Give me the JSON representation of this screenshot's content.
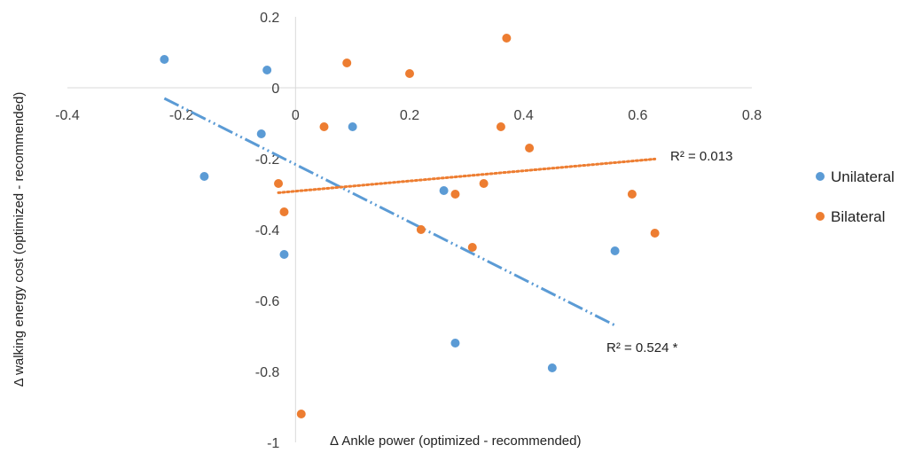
{
  "chart_data": {
    "type": "scatter",
    "xlabel": "Δ Ankle power (optimized - recommended)",
    "ylabel": "Δ walking energy cost (optimized - recommended)",
    "xlim": [
      -0.4,
      0.8
    ],
    "ylim": [
      -1,
      0.2
    ],
    "xticks": [
      "-0.4",
      "-0.2",
      "0",
      "0.2",
      "0.4",
      "0.6",
      "0.8"
    ],
    "yticks": [
      "0.2",
      "0",
      "-0.2",
      "-0.4",
      "-0.6",
      "-0.8",
      "-1"
    ],
    "legend_position": "right",
    "series": [
      {
        "name": "Unilateral",
        "color": "#5B9BD5",
        "points": [
          [
            -0.23,
            0.08
          ],
          [
            -0.05,
            0.05
          ],
          [
            -0.06,
            -0.13
          ],
          [
            -0.16,
            -0.25
          ],
          [
            0.1,
            -0.11
          ],
          [
            0.26,
            -0.29
          ],
          [
            -0.02,
            -0.47
          ],
          [
            0.56,
            -0.46
          ],
          [
            0.28,
            -0.72
          ],
          [
            0.45,
            -0.79
          ]
        ],
        "trendline": {
          "style": "dash-dot-dot",
          "x_range": [
            -0.23,
            0.56
          ],
          "y_range": [
            -0.03,
            -0.67
          ],
          "label": "R² = 0.524 *"
        }
      },
      {
        "name": "Bilateral",
        "color": "#ED7D31",
        "points": [
          [
            0.09,
            0.07
          ],
          [
            0.2,
            0.04
          ],
          [
            0.37,
            0.14
          ],
          [
            0.05,
            -0.11
          ],
          [
            0.36,
            -0.11
          ],
          [
            0.41,
            -0.17
          ],
          [
            -0.03,
            -0.27
          ],
          [
            -0.02,
            -0.35
          ],
          [
            0.28,
            -0.3
          ],
          [
            0.33,
            -0.27
          ],
          [
            0.59,
            -0.3
          ],
          [
            0.22,
            -0.4
          ],
          [
            0.31,
            -0.45
          ],
          [
            0.63,
            -0.41
          ],
          [
            0.01,
            -0.92
          ]
        ],
        "trendline": {
          "style": "dotted",
          "x_range": [
            -0.03,
            0.63
          ],
          "y_range": [
            -0.296,
            -0.201
          ],
          "label": "R² = 0.013"
        }
      }
    ]
  }
}
